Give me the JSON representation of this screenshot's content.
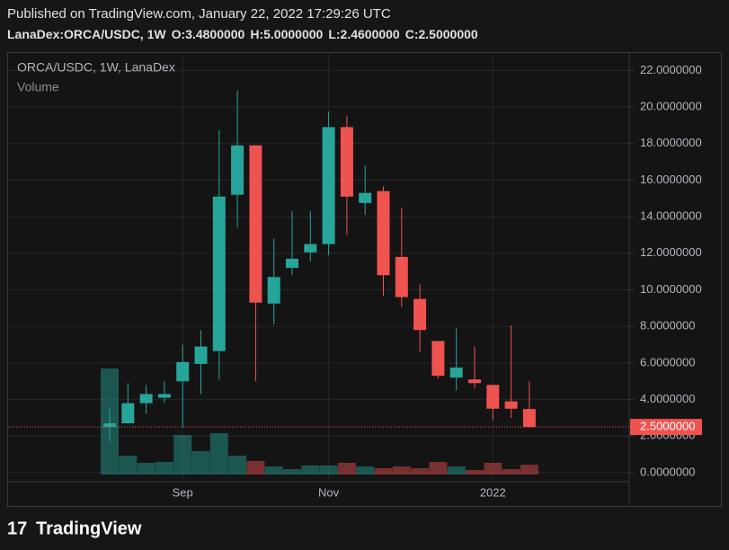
{
  "header": {
    "published": "Published on TradingView.com, January 22, 2022 17:29:26 UTC",
    "symbol": "LanaDex:ORCA/USDC, 1W",
    "ohlc": [
      {
        "key": "O:",
        "value": "3.4800000"
      },
      {
        "key": "H:",
        "value": "5.0000000"
      },
      {
        "key": "L:",
        "value": "2.4600000"
      },
      {
        "key": "C:",
        "value": "2.5000000"
      }
    ]
  },
  "chart_data": {
    "type": "candlestick",
    "legend": [
      "ORCA/USDC, 1W, LanaDex",
      "Volume"
    ],
    "categories": [
      null,
      null,
      null,
      null,
      "Sep",
      null,
      null,
      null,
      null,
      null,
      null,
      null,
      "Nov",
      null,
      null,
      null,
      null,
      null,
      null,
      null,
      null,
      "2022",
      null,
      null
    ],
    "open": [
      2.5,
      2.7,
      3.8,
      4.1,
      5.0,
      5.95,
      6.65,
      15.2,
      17.9,
      9.25,
      11.2,
      12.05,
      12.5,
      18.9,
      14.75,
      15.4,
      11.8,
      9.5,
      7.2,
      5.2,
      5.1,
      4.8,
      3.9,
      3.48
    ],
    "high": [
      3.6,
      4.9,
      4.8,
      5.0,
      7.0,
      7.8,
      18.75,
      20.9,
      17.9,
      12.8,
      14.3,
      14.3,
      19.75,
      19.5,
      16.8,
      15.65,
      14.5,
      10.3,
      7.2,
      7.9,
      6.9,
      4.8,
      8.05,
      5.0
    ],
    "low": [
      1.7,
      2.7,
      3.2,
      3.8,
      2.5,
      4.3,
      5.1,
      13.4,
      5.0,
      8.1,
      10.8,
      11.55,
      11.9,
      13.0,
      14.1,
      9.65,
      9.05,
      6.6,
      5.15,
      4.5,
      4.6,
      2.85,
      3.0,
      2.46
    ],
    "close": [
      2.7,
      3.8,
      4.3,
      4.3,
      6.05,
      6.9,
      15.1,
      17.9,
      9.3,
      10.7,
      11.7,
      12.5,
      18.9,
      15.1,
      15.3,
      10.8,
      9.6,
      7.8,
      5.3,
      5.75,
      4.9,
      3.5,
      3.5,
      2.5
    ],
    "volume": [
      118,
      21,
      13,
      14,
      44,
      26,
      46,
      21,
      15,
      9,
      6,
      10,
      10,
      13,
      9,
      7,
      9,
      7,
      14,
      9,
      5,
      13,
      6,
      11
    ],
    "volume_lim": [
      0,
      470
    ],
    "up_color": "#26a69a",
    "down_color": "#ef5350",
    "ylim": [
      -0.1,
      23.0
    ],
    "yticks": [
      {
        "value": 0,
        "label": "0.0000000"
      },
      {
        "value": 2,
        "label": "2.0000000"
      },
      {
        "value": 4,
        "label": "4.0000000"
      },
      {
        "value": 6,
        "label": "6.0000000"
      },
      {
        "value": 8,
        "label": "8.0000000"
      },
      {
        "value": 10,
        "label": "10.0000000"
      },
      {
        "value": 12,
        "label": "12.0000000"
      },
      {
        "value": 14,
        "label": "14.0000000"
      },
      {
        "value": 16,
        "label": "16.0000000"
      },
      {
        "value": 18,
        "label": "18.0000000"
      },
      {
        "value": 20,
        "label": "20.0000000"
      },
      {
        "value": 22,
        "label": "22.0000000"
      }
    ],
    "last_price": {
      "value": 2.5,
      "label": "2.5000000"
    },
    "grid": true
  },
  "footer": {
    "brand": "TradingView"
  }
}
